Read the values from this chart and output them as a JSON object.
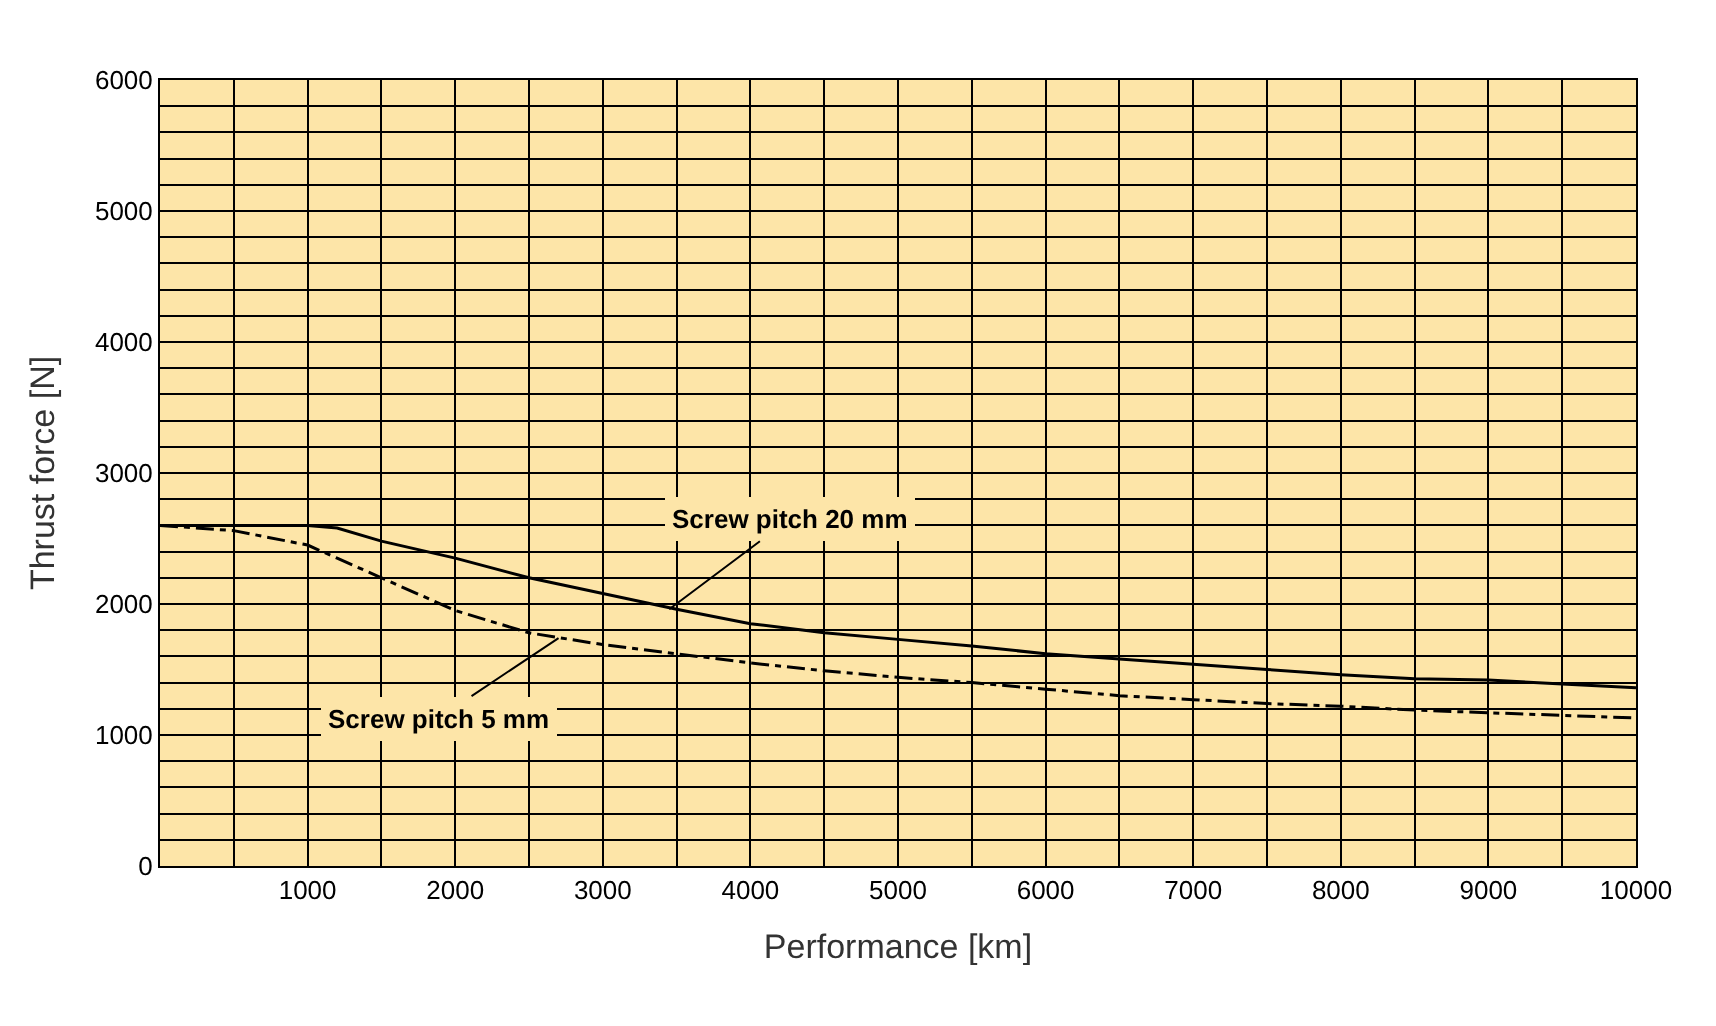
{
  "chart_data": {
    "type": "line",
    "xlabel": "Performance [km]",
    "ylabel": "Thrust force [N]",
    "x": [
      0,
      500,
      1000,
      1200,
      1500,
      2000,
      2500,
      3000,
      3500,
      4000,
      4500,
      5000,
      5500,
      6000,
      6500,
      7000,
      7500,
      8000,
      8500,
      9000,
      9500,
      10000
    ],
    "series": [
      {
        "color": "#000000",
        "line_style": "solid",
        "values": [
          2600,
          2600,
          2600,
          2580,
          2480,
          2350,
          2200,
          2080,
          1960,
          1850,
          1780,
          1730,
          1680,
          1620,
          1580,
          1540,
          1500,
          1460,
          1430,
          1420,
          1390,
          1360
        ]
      },
      {
        "color": "#000000",
        "line_style": "dashed",
        "values": [
          2600,
          2560,
          2450,
          2350,
          2200,
          1950,
          1780,
          1690,
          1620,
          1550,
          1490,
          1440,
          1400,
          1350,
          1300,
          1270,
          1240,
          1220,
          1190,
          1170,
          1150,
          1130
        ]
      }
    ],
    "annotations": [
      {
        "text": "Screw pitch 20 mm",
        "x": 3450,
        "y": 1960
      },
      {
        "text": "Screw pitch 5 mm",
        "x": 2700,
        "y": 1740
      }
    ],
    "xlim": [
      0,
      10000
    ],
    "ylim": [
      0,
      6000
    ],
    "xticks": [
      {
        "value": 500,
        "label": null
      },
      1000,
      {
        "value": 1500,
        "label": null
      },
      2000,
      {
        "value": 2500,
        "label": null
      },
      3000,
      {
        "value": 3500,
        "label": null
      },
      4000,
      {
        "value": 4500,
        "label": null
      },
      5000,
      {
        "value": 5500,
        "label": null
      },
      6000,
      {
        "value": 6500,
        "label": null
      },
      7000,
      {
        "value": 7500,
        "label": null
      },
      8000,
      {
        "value": 8500,
        "label": null
      },
      9000,
      {
        "value": 9500,
        "label": null
      },
      10000
    ],
    "yticks": [
      0,
      {
        "value": 200,
        "label": null
      },
      {
        "value": 400,
        "label": null
      },
      {
        "value": 600,
        "label": null
      },
      {
        "value": 800,
        "label": null
      },
      1000,
      {
        "value": 1200,
        "label": null
      },
      {
        "value": 1400,
        "label": null
      },
      {
        "value": 1600,
        "label": null
      },
      {
        "value": 1800,
        "label": null
      },
      2000,
      {
        "value": 2200,
        "label": null
      },
      {
        "value": 2400,
        "label": null
      },
      {
        "value": 2600,
        "label": null
      },
      {
        "value": 2800,
        "label": null
      },
      3000,
      {
        "value": 3200,
        "label": null
      },
      {
        "value": 3400,
        "label": null
      },
      {
        "value": 3600,
        "label": null
      },
      {
        "value": 3800,
        "label": null
      },
      4000,
      {
        "value": 4200,
        "label": null
      },
      {
        "value": 4400,
        "label": null
      },
      {
        "value": 4600,
        "label": null
      },
      {
        "value": 4800,
        "label": null
      },
      5000,
      {
        "value": 5200,
        "label": null
      },
      {
        "value": 5400,
        "label": null
      },
      {
        "value": 5600,
        "label": null
      },
      {
        "value": 5800,
        "label": null
      },
      6000
    ],
    "grid": true
  }
}
